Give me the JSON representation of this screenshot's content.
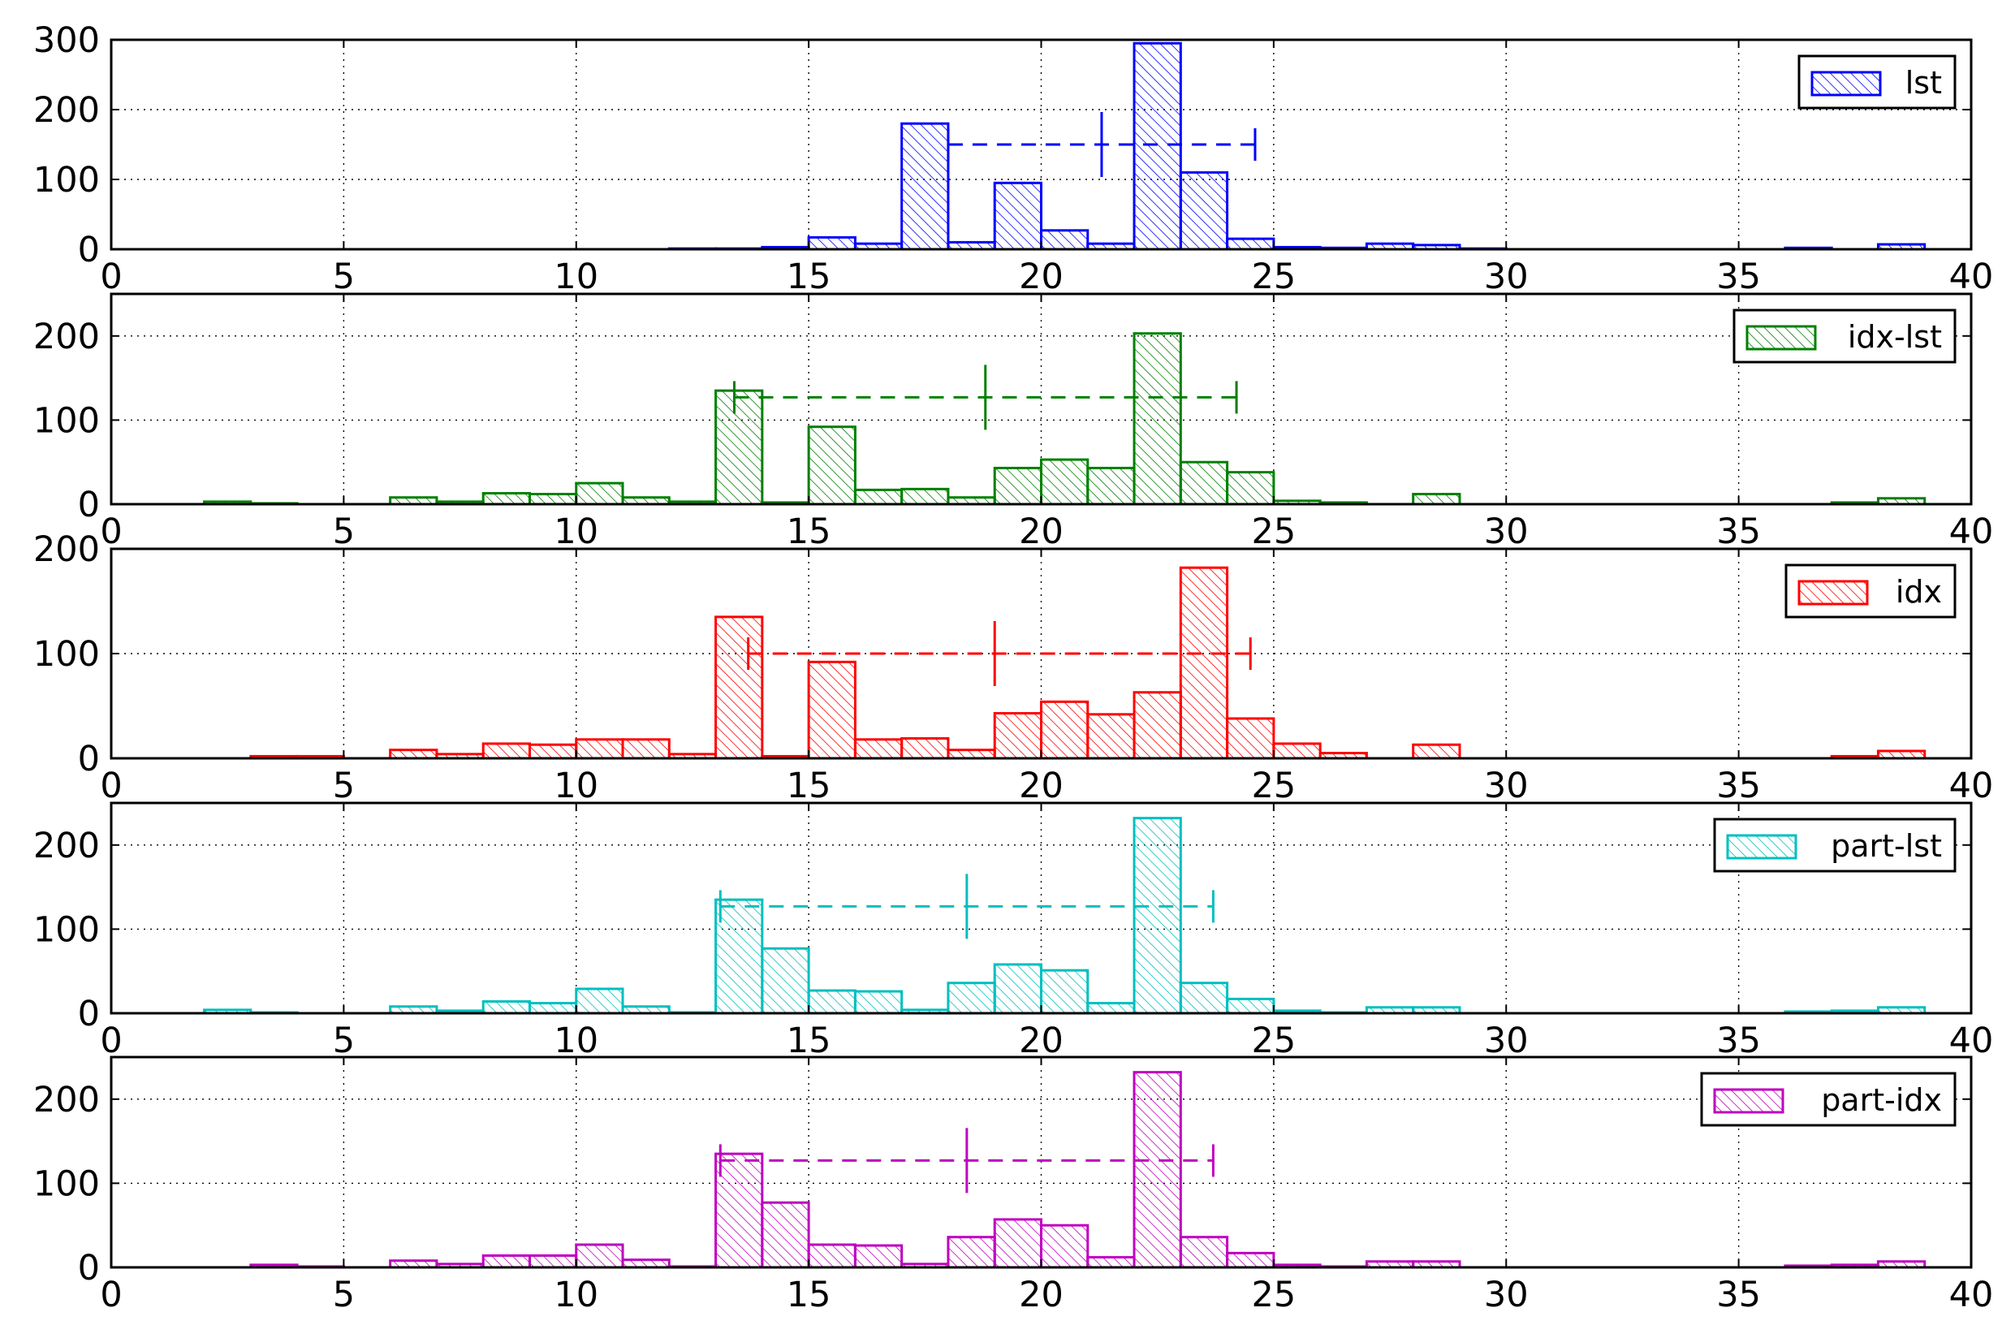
{
  "chart_data": [
    {
      "type": "bar",
      "title": "",
      "xlabel": "",
      "ylabel": "",
      "legend": {
        "label": "lst",
        "placement": "top-right"
      },
      "color": "#0000ff",
      "xlim": [
        0,
        40
      ],
      "ylim": [
        0,
        300
      ],
      "xticks": [
        0,
        5,
        10,
        15,
        20,
        25,
        30,
        35,
        40
      ],
      "yticks": [
        0,
        100,
        200,
        300
      ],
      "grid": true,
      "bin_width": 1,
      "bins": [
        {
          "x": 12,
          "value": 1
        },
        {
          "x": 13,
          "value": 1
        },
        {
          "x": 14,
          "value": 3
        },
        {
          "x": 15,
          "value": 17
        },
        {
          "x": 16,
          "value": 8
        },
        {
          "x": 17,
          "value": 180
        },
        {
          "x": 18,
          "value": 10
        },
        {
          "x": 19,
          "value": 95
        },
        {
          "x": 20,
          "value": 27
        },
        {
          "x": 21,
          "value": 8
        },
        {
          "x": 22,
          "value": 295
        },
        {
          "x": 23,
          "value": 110
        },
        {
          "x": 24,
          "value": 15
        },
        {
          "x": 25,
          "value": 3
        },
        {
          "x": 26,
          "value": 2
        },
        {
          "x": 27,
          "value": 8
        },
        {
          "x": 28,
          "value": 6
        },
        {
          "x": 29,
          "value": 1
        },
        {
          "x": 36,
          "value": 2
        },
        {
          "x": 38,
          "value": 7
        }
      ],
      "errorbar": {
        "center": 21.3,
        "low": 18.0,
        "high": 24.6,
        "y": 150
      }
    },
    {
      "type": "bar",
      "title": "",
      "xlabel": "",
      "ylabel": "",
      "legend": {
        "label": "idx-lst",
        "placement": "top-right"
      },
      "color": "#008000",
      "xlim": [
        0,
        40
      ],
      "ylim": [
        0,
        250
      ],
      "xticks": [
        0,
        5,
        10,
        15,
        20,
        25,
        30,
        35,
        40
      ],
      "yticks": [
        0,
        100,
        200
      ],
      "grid": true,
      "bin_width": 1,
      "bins": [
        {
          "x": 2,
          "value": 3
        },
        {
          "x": 3,
          "value": 1
        },
        {
          "x": 6,
          "value": 8
        },
        {
          "x": 7,
          "value": 3
        },
        {
          "x": 8,
          "value": 13
        },
        {
          "x": 9,
          "value": 12
        },
        {
          "x": 10,
          "value": 25
        },
        {
          "x": 11,
          "value": 8
        },
        {
          "x": 12,
          "value": 3
        },
        {
          "x": 13,
          "value": 135
        },
        {
          "x": 14,
          "value": 2
        },
        {
          "x": 15,
          "value": 92
        },
        {
          "x": 16,
          "value": 17
        },
        {
          "x": 17,
          "value": 18
        },
        {
          "x": 18,
          "value": 8
        },
        {
          "x": 19,
          "value": 43
        },
        {
          "x": 20,
          "value": 53
        },
        {
          "x": 21,
          "value": 43
        },
        {
          "x": 22,
          "value": 203
        },
        {
          "x": 23,
          "value": 50
        },
        {
          "x": 24,
          "value": 38
        },
        {
          "x": 25,
          "value": 4
        },
        {
          "x": 26,
          "value": 2
        },
        {
          "x": 28,
          "value": 12
        },
        {
          "x": 37,
          "value": 2
        },
        {
          "x": 38,
          "value": 7
        }
      ],
      "errorbar": {
        "center": 18.8,
        "low": 13.4,
        "high": 24.2,
        "y": 127
      }
    },
    {
      "type": "bar",
      "title": "",
      "xlabel": "",
      "ylabel": "",
      "legend": {
        "label": "idx",
        "placement": "top-right"
      },
      "color": "#ff0000",
      "xlim": [
        0,
        40
      ],
      "ylim": [
        0,
        200
      ],
      "xticks": [
        0,
        5,
        10,
        15,
        20,
        25,
        30,
        35,
        40
      ],
      "yticks": [
        0,
        100,
        200
      ],
      "grid": true,
      "bin_width": 1,
      "bins": [
        {
          "x": 3,
          "value": 2
        },
        {
          "x": 4,
          "value": 2
        },
        {
          "x": 6,
          "value": 8
        },
        {
          "x": 7,
          "value": 4
        },
        {
          "x": 8,
          "value": 14
        },
        {
          "x": 9,
          "value": 13
        },
        {
          "x": 10,
          "value": 18
        },
        {
          "x": 11,
          "value": 18
        },
        {
          "x": 12,
          "value": 4
        },
        {
          "x": 13,
          "value": 135
        },
        {
          "x": 14,
          "value": 2
        },
        {
          "x": 15,
          "value": 92
        },
        {
          "x": 16,
          "value": 18
        },
        {
          "x": 17,
          "value": 19
        },
        {
          "x": 18,
          "value": 8
        },
        {
          "x": 19,
          "value": 43
        },
        {
          "x": 20,
          "value": 54
        },
        {
          "x": 21,
          "value": 42
        },
        {
          "x": 22,
          "value": 63
        },
        {
          "x": 23,
          "value": 182
        },
        {
          "x": 24,
          "value": 38
        },
        {
          "x": 25,
          "value": 14
        },
        {
          "x": 26,
          "value": 5
        },
        {
          "x": 28,
          "value": 13
        },
        {
          "x": 37,
          "value": 2
        },
        {
          "x": 38,
          "value": 7
        }
      ],
      "errorbar": {
        "center": 19.0,
        "low": 13.7,
        "high": 24.5,
        "y": 100
      }
    },
    {
      "type": "bar",
      "title": "",
      "xlabel": "",
      "ylabel": "",
      "legend": {
        "label": "part-lst",
        "placement": "top-right"
      },
      "color": "#00bfbf",
      "xlim": [
        0,
        40
      ],
      "ylim": [
        0,
        250
      ],
      "xticks": [
        0,
        5,
        10,
        15,
        20,
        25,
        30,
        35,
        40
      ],
      "yticks": [
        0,
        100,
        200
      ],
      "grid": true,
      "bin_width": 1,
      "bins": [
        {
          "x": 2,
          "value": 4
        },
        {
          "x": 3,
          "value": 1
        },
        {
          "x": 6,
          "value": 8
        },
        {
          "x": 7,
          "value": 3
        },
        {
          "x": 8,
          "value": 14
        },
        {
          "x": 9,
          "value": 12
        },
        {
          "x": 10,
          "value": 29
        },
        {
          "x": 11,
          "value": 8
        },
        {
          "x": 12,
          "value": 1
        },
        {
          "x": 13,
          "value": 135
        },
        {
          "x": 14,
          "value": 77
        },
        {
          "x": 15,
          "value": 27
        },
        {
          "x": 16,
          "value": 26
        },
        {
          "x": 17,
          "value": 4
        },
        {
          "x": 18,
          "value": 36
        },
        {
          "x": 19,
          "value": 58
        },
        {
          "x": 20,
          "value": 51
        },
        {
          "x": 21,
          "value": 12
        },
        {
          "x": 22,
          "value": 232
        },
        {
          "x": 23,
          "value": 36
        },
        {
          "x": 24,
          "value": 17
        },
        {
          "x": 25,
          "value": 3
        },
        {
          "x": 26,
          "value": 1
        },
        {
          "x": 27,
          "value": 7
        },
        {
          "x": 28,
          "value": 7
        },
        {
          "x": 36,
          "value": 2
        },
        {
          "x": 37,
          "value": 3
        },
        {
          "x": 38,
          "value": 7
        }
      ],
      "errorbar": {
        "center": 18.4,
        "low": 13.1,
        "high": 23.7,
        "y": 127
      }
    },
    {
      "type": "bar",
      "title": "",
      "xlabel": "",
      "ylabel": "",
      "legend": {
        "label": "part-idx",
        "placement": "top-right"
      },
      "color": "#bf00bf",
      "xlim": [
        0,
        40
      ],
      "ylim": [
        0,
        250
      ],
      "xticks": [
        0,
        5,
        10,
        15,
        20,
        25,
        30,
        35,
        40
      ],
      "yticks": [
        0,
        100,
        200
      ],
      "grid": true,
      "bin_width": 1,
      "bins": [
        {
          "x": 3,
          "value": 3
        },
        {
          "x": 4,
          "value": 1
        },
        {
          "x": 6,
          "value": 8
        },
        {
          "x": 7,
          "value": 4
        },
        {
          "x": 8,
          "value": 14
        },
        {
          "x": 9,
          "value": 14
        },
        {
          "x": 10,
          "value": 27
        },
        {
          "x": 11,
          "value": 9
        },
        {
          "x": 12,
          "value": 1
        },
        {
          "x": 13,
          "value": 135
        },
        {
          "x": 14,
          "value": 77
        },
        {
          "x": 15,
          "value": 27
        },
        {
          "x": 16,
          "value": 26
        },
        {
          "x": 17,
          "value": 4
        },
        {
          "x": 18,
          "value": 36
        },
        {
          "x": 19,
          "value": 57
        },
        {
          "x": 20,
          "value": 50
        },
        {
          "x": 21,
          "value": 12
        },
        {
          "x": 22,
          "value": 232
        },
        {
          "x": 23,
          "value": 36
        },
        {
          "x": 24,
          "value": 17
        },
        {
          "x": 25,
          "value": 3
        },
        {
          "x": 26,
          "value": 1
        },
        {
          "x": 27,
          "value": 7
        },
        {
          "x": 28,
          "value": 7
        },
        {
          "x": 36,
          "value": 2
        },
        {
          "x": 37,
          "value": 3
        },
        {
          "x": 38,
          "value": 7
        }
      ],
      "errorbar": {
        "center": 18.4,
        "low": 13.1,
        "high": 23.7,
        "y": 127
      }
    }
  ]
}
